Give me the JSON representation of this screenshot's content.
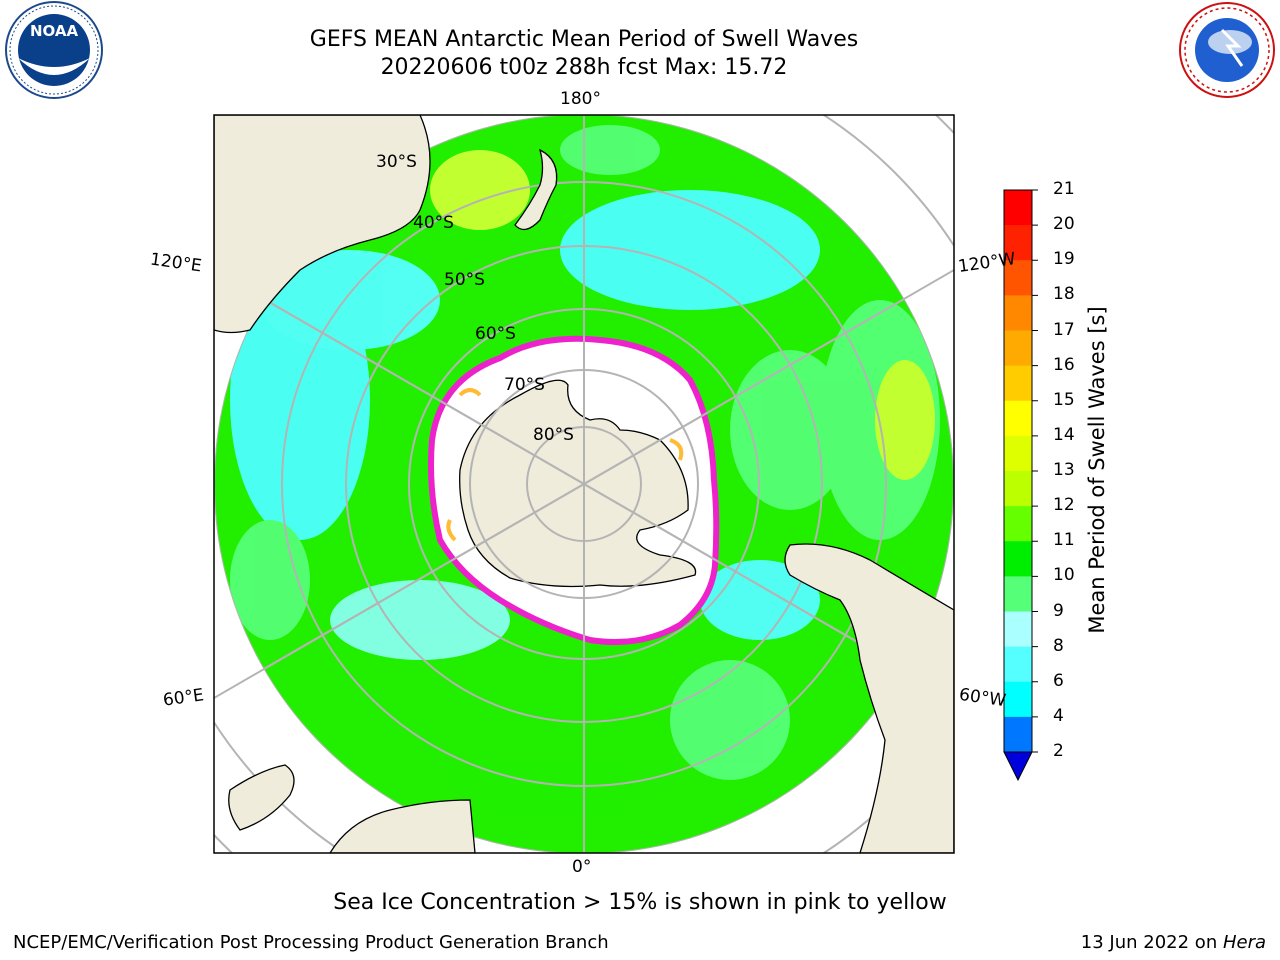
{
  "header": {
    "title_line1": "GEFS MEAN Antarctic Mean Period of Swell Waves",
    "title_line2": "20220606 t00z 288h fcst   Max: 15.72"
  },
  "logos": {
    "noaa_text": "NOAA",
    "nws_text": "NATIONAL WEATHER SERVICE"
  },
  "map": {
    "longitude_labels": {
      "top": "180°",
      "left_upper": "120°E",
      "right_upper": "120°W",
      "left_lower": "60°E",
      "right_lower": "60°W",
      "bottom": "0°"
    },
    "latitude_labels": [
      "30°S",
      "40°S",
      "50°S",
      "60°S",
      "70°S",
      "80°S"
    ],
    "colors": {
      "land": "#efecdc",
      "ice_free_white": "#ffffff",
      "sea_ice_edge": "#ee22cc",
      "grid": "#b4b4b4",
      "cyan": "#4dffff",
      "green": "#22ee00",
      "light_green": "#55ff77",
      "yellow_green": "#ccff33"
    }
  },
  "colorbar": {
    "label": "Mean Period of Swell Waves [s]",
    "ticks": [
      "2",
      "4",
      "6",
      "8",
      "9",
      "10",
      "11",
      "12",
      "13",
      "14",
      "15",
      "16",
      "17",
      "18",
      "19",
      "20",
      "21"
    ],
    "colors": [
      "#0000dd",
      "#0077ff",
      "#00ffff",
      "#55ffff",
      "#aaffff",
      "#55ff77",
      "#00ee00",
      "#66ff00",
      "#bbff00",
      "#ddff00",
      "#ffff00",
      "#ffcc00",
      "#ffaa00",
      "#ff8800",
      "#ff5500",
      "#ff2200",
      "#ff0000"
    ]
  },
  "footer": {
    "note": "Sea Ice Concentration > 15% is shown in pink to yellow",
    "credit_left": "NCEP/EMC/Verification Post Processing Product Generation Branch",
    "credit_right_date": "13 Jun 2022 on ",
    "credit_right_host": "Hera"
  }
}
